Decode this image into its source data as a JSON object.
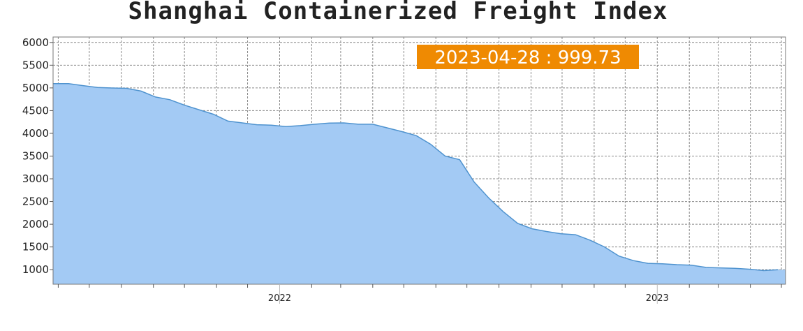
{
  "chart_data": {
    "type": "area",
    "title": "Shanghai Containerized Freight Index",
    "xlabel": "",
    "ylabel": "",
    "ylim": [
      680,
      6120
    ],
    "yticks": [
      1000,
      1500,
      2000,
      2500,
      3000,
      3500,
      4000,
      4500,
      5000,
      5500,
      6000
    ],
    "xlim": [
      "2021-05-27",
      "2023-05-05"
    ],
    "xtick_labels": [
      {
        "date": "2022-01-01",
        "label": "2022"
      },
      {
        "date": "2023-01-01",
        "label": "2023"
      }
    ],
    "grid": true,
    "colors": {
      "fill": "#a3caf4",
      "line": "#4f93cf",
      "grid": "#888888",
      "badge_bg": "#ef8a02",
      "badge_text": "#ffffff"
    },
    "annotation": {
      "text": "2023-04-28 : 999.73"
    },
    "series": [
      {
        "x": [
          "2021-05-28",
          "2021-06-11",
          "2021-06-25",
          "2021-07-09",
          "2021-07-23",
          "2021-08-06",
          "2021-08-20",
          "2021-09-03",
          "2021-09-17",
          "2021-10-01",
          "2021-10-15",
          "2021-10-29",
          "2021-11-12",
          "2021-11-26",
          "2021-12-10",
          "2021-12-24",
          "2022-01-07",
          "2022-01-21",
          "2022-02-04",
          "2022-02-18",
          "2022-03-04",
          "2022-03-18",
          "2022-04-01",
          "2022-04-15",
          "2022-04-29",
          "2022-05-13",
          "2022-05-27",
          "2022-06-10",
          "2022-06-24",
          "2022-07-08",
          "2022-07-22",
          "2022-08-05",
          "2022-08-19",
          "2022-09-02",
          "2022-09-16",
          "2022-09-30",
          "2022-10-14",
          "2022-10-28",
          "2022-11-11",
          "2022-11-25",
          "2022-12-09",
          "2022-12-23",
          "2023-01-06",
          "2023-01-20",
          "2023-02-03",
          "2023-02-17",
          "2023-03-03",
          "2023-03-17",
          "2023-03-31",
          "2023-04-14",
          "2023-04-28"
        ],
        "values": [
          5095,
          5095,
          5050,
          5010,
          4998,
          4990,
          4930,
          4800,
          4740,
          4620,
          4520,
          4420,
          4270,
          4230,
          4190,
          4180,
          4150,
          4170,
          4200,
          4225,
          4230,
          4200,
          4200,
          4120,
          4040,
          3950,
          3760,
          3500,
          3420,
          2930,
          2580,
          2280,
          2020,
          1900,
          1840,
          1790,
          1770,
          1650,
          1500,
          1300,
          1200,
          1140,
          1130,
          1110,
          1100,
          1050,
          1040,
          1030,
          1010,
          980,
          999.73
        ]
      }
    ]
  }
}
